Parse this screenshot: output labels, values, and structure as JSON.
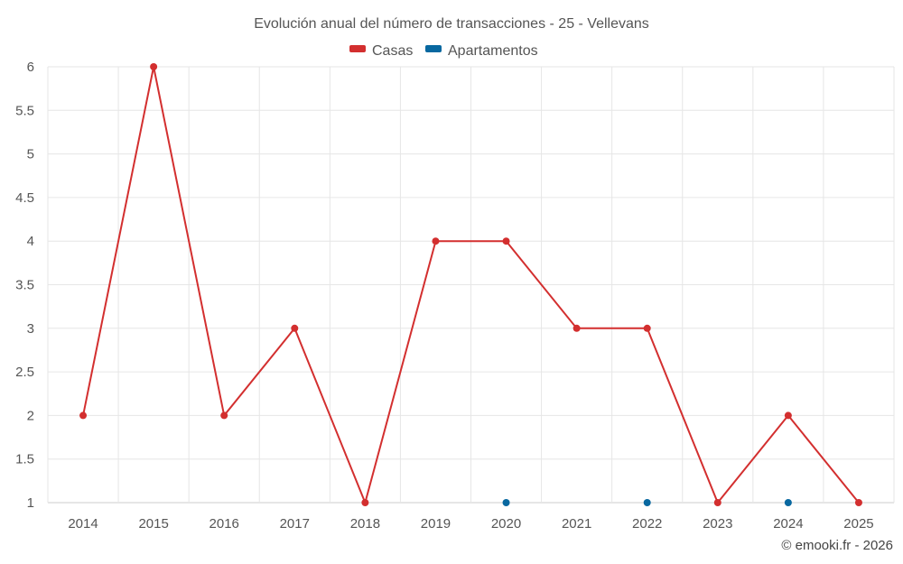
{
  "chart_data": {
    "type": "line",
    "title": "Evolución anual del número de transacciones - 25 - Vellevans",
    "xlabel": "",
    "ylabel": "",
    "categories": [
      "2014",
      "2015",
      "2016",
      "2017",
      "2018",
      "2019",
      "2020",
      "2021",
      "2022",
      "2023",
      "2024",
      "2025"
    ],
    "ylim": [
      1,
      6
    ],
    "yticks": [
      "1",
      "1.5",
      "2",
      "2.5",
      "3",
      "3.5",
      "4",
      "4.5",
      "5",
      "5.5",
      "6"
    ],
    "legend_position": "top-center",
    "grid": true,
    "series": [
      {
        "name": "Casas",
        "color": "#d32f2f",
        "line": true,
        "values": [
          2,
          6,
          2,
          3,
          1,
          4,
          4,
          3,
          3,
          1,
          2,
          1
        ]
      },
      {
        "name": "Apartamentos",
        "color": "#0868a0",
        "line": false,
        "values": [
          null,
          null,
          null,
          null,
          null,
          null,
          1,
          null,
          1,
          null,
          1,
          null
        ]
      }
    ]
  },
  "credit": "© emooki.fr - 2026"
}
